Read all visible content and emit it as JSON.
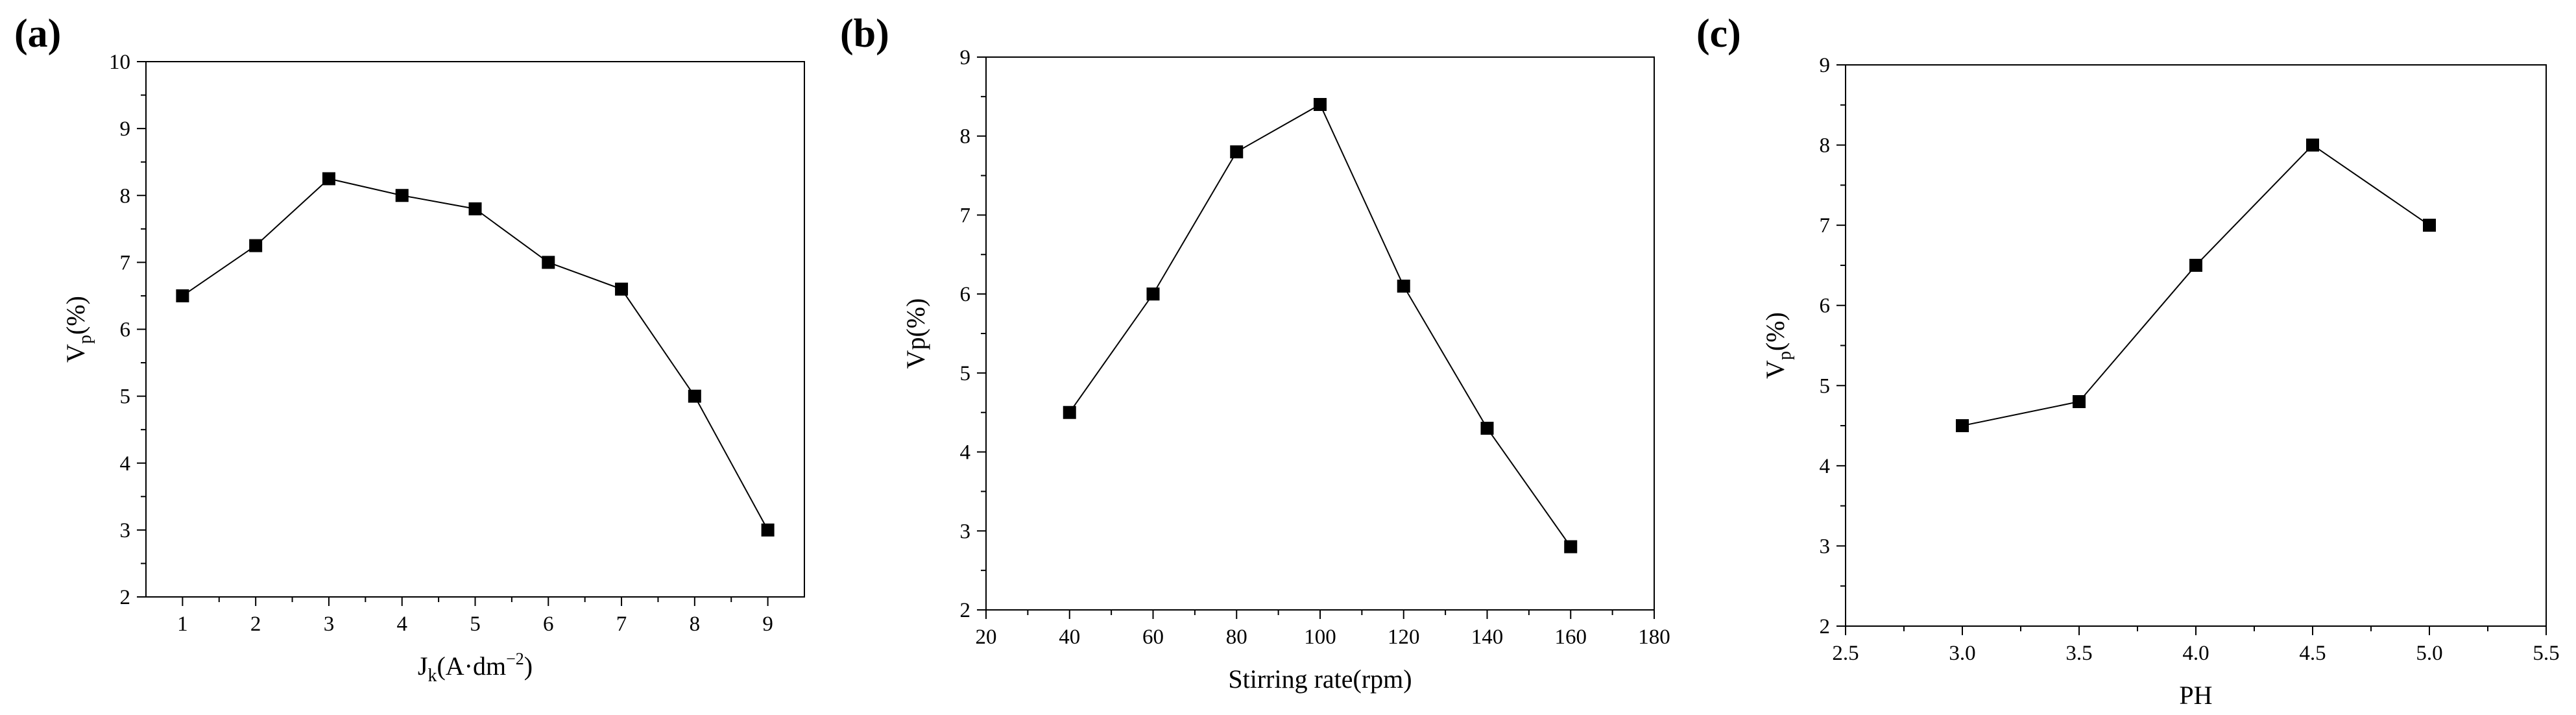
{
  "chart_data": [
    {
      "type": "line",
      "panel_label": "(a)",
      "title": "",
      "xlabel": {
        "main": "J",
        "sub": "k",
        "mid": "(A·dm",
        "sup": "−2",
        "end": ")"
      },
      "ylabel": {
        "main": "V",
        "sub": "p",
        "end": "(%)"
      },
      "xlim": [
        0.5,
        9.5
      ],
      "ylim": [
        2,
        10
      ],
      "xticks": [
        1,
        2,
        3,
        4,
        5,
        6,
        7,
        8,
        9
      ],
      "xtick_labels": [
        "1",
        "2",
        "3",
        "4",
        "5",
        "6",
        "7",
        "8",
        "9"
      ],
      "yticks": [
        2,
        3,
        4,
        5,
        6,
        7,
        8,
        9,
        10
      ],
      "ytick_labels": [
        "2",
        "3",
        "4",
        "5",
        "6",
        "7",
        "8",
        "9",
        "10"
      ],
      "grid": false,
      "marker": "square",
      "series": [
        {
          "name": "Vp",
          "x": [
            1,
            2,
            3,
            4,
            5,
            6,
            7,
            8,
            9
          ],
          "values": [
            6.5,
            7.25,
            8.25,
            8.0,
            7.8,
            7.0,
            6.6,
            5.0,
            3.0
          ]
        }
      ]
    },
    {
      "type": "line",
      "panel_label": "(b)",
      "title": "",
      "xlabel": {
        "main": "Stirring rate(rpm)",
        "sub": "",
        "mid": "",
        "sup": "",
        "end": ""
      },
      "ylabel": {
        "main": "Vp",
        "sub": "",
        "end": "(%)"
      },
      "xlim": [
        20,
        180
      ],
      "ylim": [
        2,
        9
      ],
      "xticks": [
        20,
        40,
        60,
        80,
        100,
        120,
        140,
        160,
        180
      ],
      "xtick_labels": [
        "20",
        "40",
        "60",
        "80",
        "100",
        "120",
        "140",
        "160",
        "180"
      ],
      "yticks": [
        2,
        3,
        4,
        5,
        6,
        7,
        8,
        9
      ],
      "ytick_labels": [
        "2",
        "3",
        "4",
        "5",
        "6",
        "7",
        "8",
        "9"
      ],
      "grid": false,
      "marker": "square",
      "series": [
        {
          "name": "Vp",
          "x": [
            40,
            60,
            80,
            100,
            120,
            140,
            160
          ],
          "values": [
            4.5,
            6.0,
            7.8,
            8.4,
            6.1,
            4.3,
            2.8
          ]
        }
      ]
    },
    {
      "type": "line",
      "panel_label": "(c)",
      "title": "",
      "xlabel": {
        "main": "PH",
        "sub": "",
        "mid": "",
        "sup": "",
        "end": ""
      },
      "ylabel": {
        "main": "V",
        "sub": "p",
        "end": "(%)"
      },
      "xlim": [
        2.5,
        5.5
      ],
      "ylim": [
        2,
        9
      ],
      "xticks": [
        2.5,
        3.0,
        3.5,
        4.0,
        4.5,
        5.0,
        5.5
      ],
      "xtick_labels": [
        "2.5",
        "3.0",
        "3.5",
        "4.0",
        "4.5",
        "5.0",
        "5.5"
      ],
      "yticks": [
        2,
        3,
        4,
        5,
        6,
        7,
        8,
        9
      ],
      "ytick_labels": [
        "2",
        "3",
        "4",
        "5",
        "6",
        "7",
        "8",
        "9"
      ],
      "grid": false,
      "marker": "square",
      "series": [
        {
          "name": "Vp",
          "x": [
            3.0,
            3.5,
            4.0,
            4.5,
            5.0
          ],
          "values": [
            4.5,
            4.8,
            6.5,
            8.0,
            7.0
          ]
        }
      ]
    }
  ],
  "colors": {
    "line": "#000000",
    "marker": "#000000",
    "axis": "#000000",
    "background": "#ffffff"
  }
}
